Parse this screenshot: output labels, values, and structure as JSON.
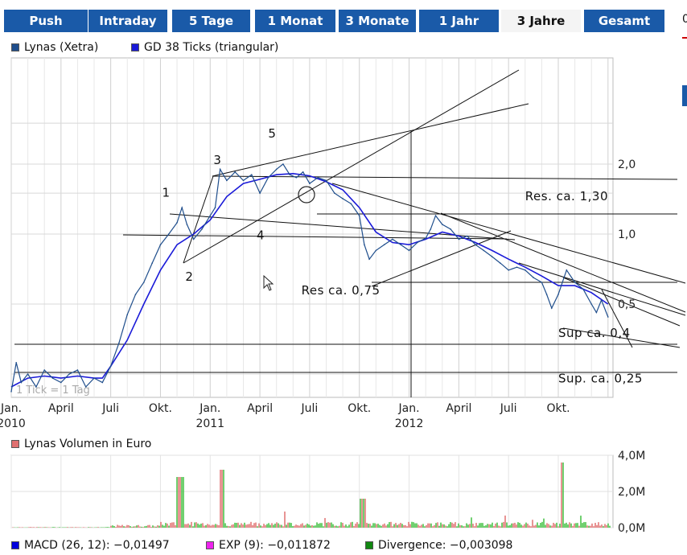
{
  "tabs": [
    {
      "label": "Push",
      "active": false
    },
    {
      "label": "Intraday",
      "active": false
    },
    {
      "label": "5 Tage",
      "active": false
    },
    {
      "label": "1 Monat",
      "active": false
    },
    {
      "label": "3 Monate",
      "active": false
    },
    {
      "label": "1 Jahr",
      "active": false
    },
    {
      "label": "3 Jahre",
      "active": true
    },
    {
      "label": "Gesamt",
      "active": false
    }
  ],
  "edge_text": "0",
  "colors": {
    "tab": "#1a5aa8",
    "price": "#1f4e8c",
    "avg": "#1a1ad8",
    "volume_down": "#e07070",
    "volume_up": "#40c040",
    "macd": "#0000dd",
    "exp": "#ee22ee",
    "divergence": "#118811"
  },
  "chart_data": [
    {
      "type": "line",
      "legend": [
        {
          "name": "Lynas (Xetra)",
          "color": "#1f4e8c"
        },
        {
          "name": "GD 38 Ticks (triangular)",
          "color": "#1a1ad8"
        }
      ],
      "x_ticks": [
        {
          "label": "Jan.",
          "sub": "2010",
          "t": 0
        },
        {
          "label": "April",
          "sub": "",
          "t": 3
        },
        {
          "label": "Juli",
          "sub": "",
          "t": 6
        },
        {
          "label": "Okt.",
          "sub": "",
          "t": 9
        },
        {
          "label": "Jan.",
          "sub": "2011",
          "t": 12
        },
        {
          "label": "April",
          "sub": "",
          "t": 15
        },
        {
          "label": "Juli",
          "sub": "",
          "t": 18
        },
        {
          "label": "Okt.",
          "sub": "",
          "t": 21
        },
        {
          "label": "Jan.",
          "sub": "2012",
          "t": 24
        },
        {
          "label": "April",
          "sub": "",
          "t": 27
        },
        {
          "label": "Juli",
          "sub": "",
          "t": 30
        },
        {
          "label": "Okt.",
          "sub": "",
          "t": 33
        }
      ],
      "y_ticks": [
        {
          "label": "2,0",
          "v": 2.0
        },
        {
          "label": "1,0",
          "v": 1.0
        },
        {
          "label": "0,5",
          "v": 0.5
        }
      ],
      "y_scale": "log",
      "ylim": [
        0.17,
        3.5
      ],
      "xlim": [
        0,
        36.3
      ],
      "grid": true,
      "footnote": "1 Tick = 1 Tag",
      "price": [
        [
          0,
          0.21
        ],
        [
          0.3,
          0.28
        ],
        [
          0.6,
          0.23
        ],
        [
          1,
          0.25
        ],
        [
          1.5,
          0.22
        ],
        [
          2,
          0.26
        ],
        [
          2.5,
          0.24
        ],
        [
          3,
          0.23
        ],
        [
          3.5,
          0.25
        ],
        [
          4,
          0.26
        ],
        [
          4.5,
          0.22
        ],
        [
          5,
          0.24
        ],
        [
          5.5,
          0.23
        ],
        [
          6,
          0.27
        ],
        [
          6.5,
          0.34
        ],
        [
          7,
          0.45
        ],
        [
          7.5,
          0.55
        ],
        [
          8,
          0.62
        ],
        [
          8.5,
          0.75
        ],
        [
          9,
          0.9
        ],
        [
          9.5,
          1.0
        ],
        [
          10,
          1.12
        ],
        [
          10.3,
          1.3
        ],
        [
          10.6,
          1.1
        ],
        [
          11,
          0.95
        ],
        [
          11.5,
          1.05
        ],
        [
          12,
          1.2
        ],
        [
          12.3,
          1.3
        ],
        [
          12.6,
          1.9
        ],
        [
          13,
          1.7
        ],
        [
          13.5,
          1.85
        ],
        [
          14,
          1.7
        ],
        [
          14.5,
          1.8
        ],
        [
          15,
          1.5
        ],
        [
          15.5,
          1.75
        ],
        [
          16,
          1.9
        ],
        [
          16.4,
          2.0
        ],
        [
          16.8,
          1.8
        ],
        [
          17.2,
          1.75
        ],
        [
          17.6,
          1.85
        ],
        [
          18,
          1.65
        ],
        [
          18.5,
          1.75
        ],
        [
          19,
          1.7
        ],
        [
          19.5,
          1.5
        ],
        [
          20,
          1.42
        ],
        [
          20.5,
          1.35
        ],
        [
          21,
          1.2
        ],
        [
          21.3,
          0.9
        ],
        [
          21.6,
          0.78
        ],
        [
          22,
          0.85
        ],
        [
          22.5,
          0.9
        ],
        [
          23,
          0.95
        ],
        [
          23.5,
          0.9
        ],
        [
          24,
          0.85
        ],
        [
          24.5,
          0.92
        ],
        [
          25,
          0.96
        ],
        [
          25.3,
          1.05
        ],
        [
          25.6,
          1.2
        ],
        [
          26,
          1.1
        ],
        [
          26.5,
          1.05
        ],
        [
          27,
          0.95
        ],
        [
          27.5,
          0.98
        ],
        [
          28,
          0.9
        ],
        [
          28.5,
          0.85
        ],
        [
          29,
          0.8
        ],
        [
          29.5,
          0.75
        ],
        [
          30,
          0.7
        ],
        [
          30.5,
          0.72
        ],
        [
          31,
          0.7
        ],
        [
          31.5,
          0.65
        ],
        [
          32,
          0.62
        ],
        [
          32.3,
          0.55
        ],
        [
          32.6,
          0.48
        ],
        [
          33,
          0.55
        ],
        [
          33.5,
          0.7
        ],
        [
          34,
          0.62
        ],
        [
          34.5,
          0.58
        ],
        [
          35,
          0.5
        ],
        [
          35.3,
          0.46
        ],
        [
          35.6,
          0.52
        ],
        [
          36,
          0.44
        ]
      ],
      "average": [
        [
          0,
          0.22
        ],
        [
          1,
          0.24
        ],
        [
          2,
          0.245
        ],
        [
          3,
          0.24
        ],
        [
          4,
          0.245
        ],
        [
          5,
          0.24
        ],
        [
          5.5,
          0.24
        ],
        [
          6,
          0.27
        ],
        [
          7,
          0.35
        ],
        [
          8,
          0.5
        ],
        [
          9,
          0.7
        ],
        [
          10,
          0.9
        ],
        [
          11,
          1.0
        ],
        [
          12,
          1.15
        ],
        [
          13,
          1.45
        ],
        [
          14,
          1.65
        ],
        [
          15,
          1.72
        ],
        [
          16,
          1.8
        ],
        [
          17,
          1.82
        ],
        [
          18,
          1.78
        ],
        [
          19,
          1.68
        ],
        [
          20,
          1.55
        ],
        [
          21,
          1.3
        ],
        [
          22,
          1.02
        ],
        [
          23,
          0.92
        ],
        [
          24,
          0.9
        ],
        [
          25,
          0.95
        ],
        [
          26,
          1.02
        ],
        [
          27,
          0.98
        ],
        [
          28,
          0.92
        ],
        [
          29,
          0.85
        ],
        [
          30,
          0.78
        ],
        [
          31,
          0.72
        ],
        [
          32,
          0.66
        ],
        [
          33,
          0.6
        ],
        [
          34,
          0.6
        ],
        [
          35,
          0.56
        ],
        [
          36,
          0.5
        ]
      ],
      "annotations": [
        {
          "text": "1",
          "t": 9.1,
          "v": 1.45
        },
        {
          "text": "2",
          "t": 10.5,
          "v": 0.63
        },
        {
          "text": "3",
          "t": 12.2,
          "v": 2.0
        },
        {
          "text": "4",
          "t": 14.8,
          "v": 0.95
        },
        {
          "text": "5",
          "t": 15.5,
          "v": 2.6
        },
        {
          "text": "Res ca. 0,75",
          "t": 17.5,
          "v": 0.55
        },
        {
          "text": "Res. ca. 1,30",
          "t": 31,
          "v": 1.4
        },
        {
          "text": "Sup ca. 0,4",
          "t": 33,
          "v": 0.36
        },
        {
          "text": "Sup. ca. 0,25",
          "t": 33,
          "v": 0.23
        }
      ]
    },
    {
      "type": "bar",
      "legend": [
        {
          "name": "Lynas Volumen in Euro",
          "color": "#e07070"
        }
      ],
      "y_ticks": [
        {
          "label": "4,0M",
          "v": 4.0
        },
        {
          "label": "2,0M",
          "v": 2.0
        },
        {
          "label": "0,0M",
          "v": 0.0
        }
      ],
      "ylim": [
        0,
        4.0
      ],
      "unit": "M"
    }
  ],
  "macd_legend": [
    {
      "name": "MACD (26, 12): −0,01497",
      "color": "#0000dd"
    },
    {
      "name": "EXP (9): −0,011872",
      "color": "#ee22ee"
    },
    {
      "name": "Divergence: −0,003098",
      "color": "#118811"
    }
  ]
}
